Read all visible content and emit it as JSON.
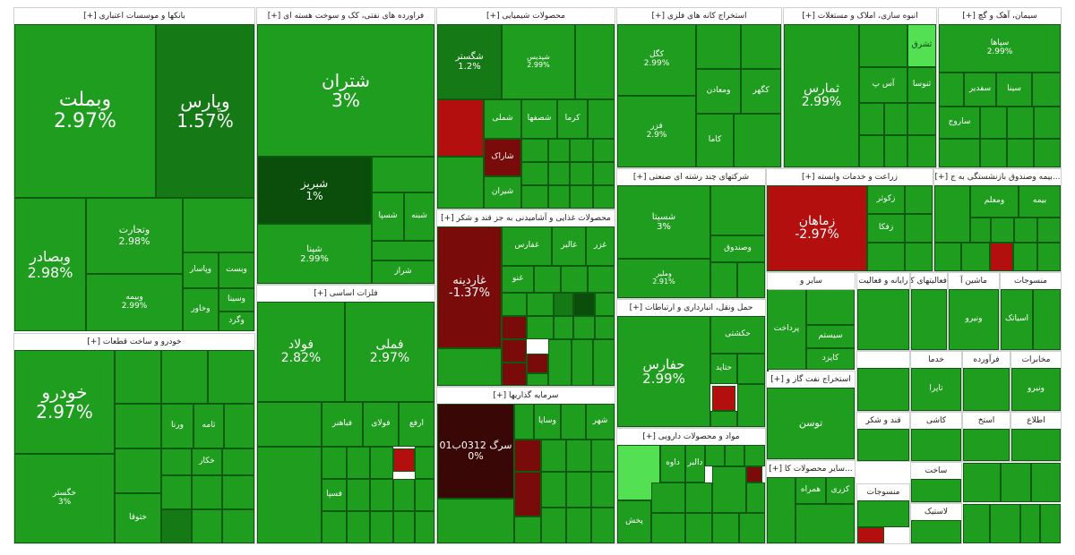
{
  "colors": {
    "positive": "#1f9d1f",
    "positive_strong": "#157a15",
    "negative": "#b30f0f",
    "negative_dark": "#3a0707",
    "neutral_bright": "#53e053"
  },
  "sectors": [
    {
      "title": "بانکها و موسسات اعتباری [+]"
    },
    {
      "title": "فراورده های نفتی، کک و سوخت هسته ای [+]"
    },
    {
      "title": "محصولات شیمیایی [+]"
    },
    {
      "title": "استخراج کانه های فلزی [+]"
    },
    {
      "title": "انبوه سازی، املاک و مستغلات [+]"
    },
    {
      "title": "سیمان، آهک و گچ [+]"
    },
    {
      "title": "خودرو و ساخت قطعات [+]"
    },
    {
      "title": "فلزات اساسی [+]"
    },
    {
      "title": "محصولات غذایی و آشامیدنی به جز قند و شکر [+]"
    },
    {
      "title": "سرمایه گذاریها [+]"
    },
    {
      "title": "شرکتهای چند رشته ای صنعتی [+]"
    },
    {
      "title": "زراعت و خدمات وابسته [+]"
    },
    {
      "title": "...بیمه وصندوق بازنشستگی به ج [+]"
    },
    {
      "title": "حمل ونقل، انبارداری و ارتباطات [+]"
    },
    {
      "title": "مواد و محصولات دارویی [+]"
    },
    {
      "title": "استخراج نفت گاز و [+]"
    },
    {
      "title": "...سایر محصولات کا [+]"
    }
  ],
  "tiles": [
    {
      "name": "وبملت",
      "pct": "2.97%"
    },
    {
      "name": "وپارس",
      "pct": "1.57%"
    },
    {
      "name": "وبصادر",
      "pct": "2.98%"
    },
    {
      "name": "وتجارت",
      "pct": "2.98%"
    },
    {
      "name": "وبیمه",
      "pct": "2.99%"
    },
    {
      "name": "وپاسار",
      "pct": ""
    },
    {
      "name": "وبست",
      "pct": ""
    },
    {
      "name": "وسینا",
      "pct": ""
    },
    {
      "name": "وخاور",
      "pct": ""
    },
    {
      "name": "وگرد",
      "pct": ""
    },
    {
      "name": "شتران",
      "pct": "3%"
    },
    {
      "name": "شبریز",
      "pct": "1%"
    },
    {
      "name": "شپنا",
      "pct": "2.99%"
    },
    {
      "name": "شسپا",
      "pct": ""
    },
    {
      "name": "شبنه",
      "pct": ""
    },
    {
      "name": "شراز",
      "pct": ""
    },
    {
      "name": "شگستر",
      "pct": "1.2%"
    },
    {
      "name": "شپدیس",
      "pct": "2.99%"
    },
    {
      "name": "شملی",
      "pct": ""
    },
    {
      "name": "شصفها",
      "pct": ""
    },
    {
      "name": "کرما",
      "pct": ""
    },
    {
      "name": "شاراک",
      "pct": ""
    },
    {
      "name": "شیران",
      "pct": ""
    },
    {
      "name": "کگل",
      "pct": "2.99%"
    },
    {
      "name": "فزر",
      "pct": "2.9%"
    },
    {
      "name": "ومعادن",
      "pct": ""
    },
    {
      "name": "کگهر",
      "pct": ""
    },
    {
      "name": "کاما",
      "pct": ""
    },
    {
      "name": "ثمارس",
      "pct": "2.99%"
    },
    {
      "name": "ثشرق",
      "pct": ""
    },
    {
      "name": "آس پ",
      "pct": ""
    },
    {
      "name": "ثنوسا",
      "pct": ""
    },
    {
      "name": "سپاها",
      "pct": "2.99%"
    },
    {
      "name": "سفدیر",
      "pct": ""
    },
    {
      "name": "سینا",
      "pct": ""
    },
    {
      "name": "ساروج",
      "pct": ""
    },
    {
      "name": "خودرو",
      "pct": "2.97%"
    },
    {
      "name": "خگستر",
      "pct": "3%"
    },
    {
      "name": "ختوقا",
      "pct": ""
    },
    {
      "name": "خکار",
      "pct": ""
    },
    {
      "name": "ورنا",
      "pct": ""
    },
    {
      "name": "ثامه",
      "pct": ""
    },
    {
      "name": "فولاد",
      "pct": "2.82%"
    },
    {
      "name": "فملی",
      "pct": "2.97%"
    },
    {
      "name": "فباهنر",
      "pct": ""
    },
    {
      "name": "فولای",
      "pct": ""
    },
    {
      "name": "ارفع",
      "pct": ""
    },
    {
      "name": "فسپا",
      "pct": ""
    },
    {
      "name": "غاردینه",
      "pct": "-1.37%"
    },
    {
      "name": "غفارس",
      "pct": ""
    },
    {
      "name": "غالبر",
      "pct": ""
    },
    {
      "name": "غزر",
      "pct": ""
    },
    {
      "name": "غنو",
      "pct": ""
    },
    {
      "name": "سرگ 0312ب01",
      "pct": "0%"
    },
    {
      "name": "وسایا",
      "pct": ""
    },
    {
      "name": "شهر",
      "pct": ""
    },
    {
      "name": "ونیکی",
      "pct": ""
    },
    {
      "name": "شسیتا",
      "pct": "3%"
    },
    {
      "name": "وصندوق",
      "pct": ""
    },
    {
      "name": "وملیر",
      "pct": "2.91%"
    },
    {
      "name": "زماهان",
      "pct": "-2.97%"
    },
    {
      "name": "زکوثر",
      "pct": ""
    },
    {
      "name": "زفکا",
      "pct": ""
    },
    {
      "name": "بیمه",
      "pct": ""
    },
    {
      "name": "ومعلم",
      "pct": ""
    },
    {
      "name": "حفارس",
      "pct": "2.99%"
    },
    {
      "name": "حکشتی",
      "pct": ""
    },
    {
      "name": "حتاید",
      "pct": ""
    },
    {
      "name": "دالبر",
      "pct": ""
    },
    {
      "name": "داوه",
      "pct": ""
    },
    {
      "name": "پخش",
      "pct": ""
    },
    {
      "name": "حفاری",
      "pct": "3%"
    },
    {
      "name": "توسن",
      "pct": ""
    },
    {
      "name": "پرداخت",
      "pct": ""
    },
    {
      "name": "سیستم",
      "pct": ""
    },
    {
      "name": "کایزد",
      "pct": ""
    },
    {
      "name": "کزری",
      "pct": ""
    },
    {
      "name": "همراه",
      "pct": ""
    },
    {
      "name": "تاپرا",
      "pct": ""
    },
    {
      "name": "اسیاتک",
      "pct": ""
    },
    {
      "name": "ونیرو",
      "pct": ""
    },
    {
      "name": "ماشین",
      "pct": ""
    },
    {
      "name": "منسوجات",
      "pct": ""
    },
    {
      "name": "قند و شکر",
      "pct": ""
    },
    {
      "name": "ساخت",
      "pct": ""
    },
    {
      "name": "لاستیک",
      "pct": ""
    },
    {
      "name": "کاشی",
      "pct": ""
    },
    {
      "name": "استخ",
      "pct": ""
    },
    {
      "name": "اطلاع",
      "pct": ""
    },
    {
      "name": "مخابرات",
      "pct": ""
    },
    {
      "name": "خدما",
      "pct": ""
    },
    {
      "name": "فرآورده",
      "pct": ""
    },
    {
      "name": "ماشین آ",
      "pct": ""
    },
    {
      "name": "فعالیتهای کمکی",
      "pct": ""
    },
    {
      "name": "رایانه و فعالیت",
      "pct": ""
    },
    {
      "name": "سایر و",
      "pct": ""
    }
  ]
}
